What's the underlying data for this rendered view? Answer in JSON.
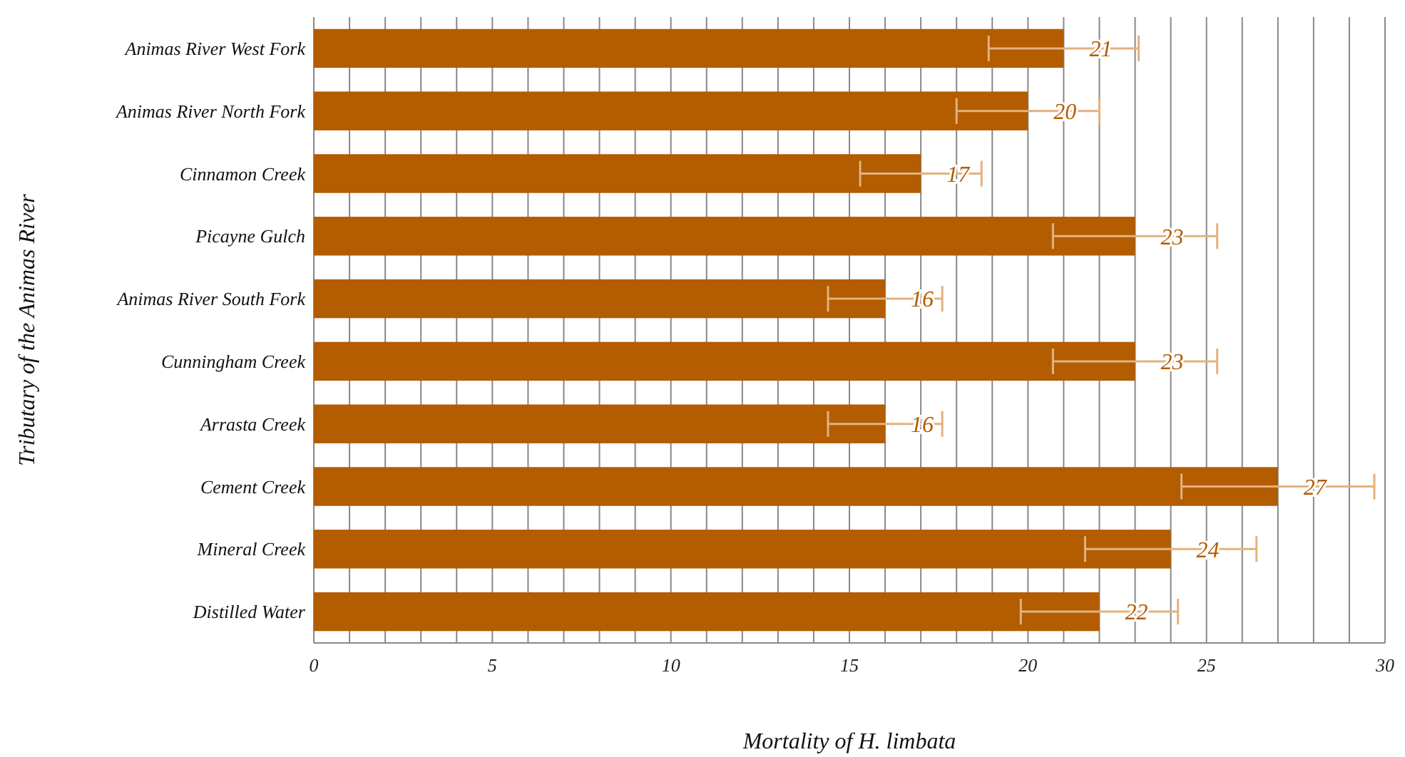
{
  "chart_data": {
    "type": "bar",
    "orientation": "horizontal",
    "xlabel": "Mortality of H. limbata",
    "ylabel": "Tributary of the Animas River",
    "categories": [
      "Animas River West Fork",
      "Animas River North Fork",
      "Cinnamon Creek",
      "Picayne Gulch",
      "Animas River South Fork",
      "Cunningham Creek",
      "Arrasta Creek",
      "Cement Creek",
      "Mineral Creek",
      "Distilled Water"
    ],
    "values": [
      21,
      20,
      17,
      23,
      16,
      23,
      16,
      27,
      24,
      22
    ],
    "errors": [
      2.1,
      2,
      1.7,
      2.3,
      1.6,
      2.3,
      1.6,
      2.7,
      2.4,
      2.2
    ],
    "color": "#b35c00",
    "data_labels": true,
    "grid": "x",
    "xlim": [
      0,
      30
    ],
    "xticks": [
      0,
      {
        "value": 1,
        "label": null
      },
      {
        "value": 2,
        "label": null
      },
      {
        "value": 3,
        "label": null
      },
      {
        "value": 4,
        "label": null
      },
      5,
      {
        "value": 6,
        "label": null
      },
      {
        "value": 7,
        "label": null
      },
      {
        "value": 8,
        "label": null
      },
      {
        "value": 9,
        "label": null
      },
      10,
      {
        "value": 11,
        "label": null
      },
      {
        "value": 12,
        "label": null
      },
      {
        "value": 13,
        "label": null
      },
      {
        "value": 14,
        "label": null
      },
      15,
      {
        "value": 16,
        "label": null
      },
      {
        "value": 17,
        "label": null
      },
      {
        "value": 18,
        "label": null
      },
      {
        "value": 19,
        "label": null
      },
      20,
      {
        "value": 21,
        "label": null
      },
      {
        "value": 22,
        "label": null
      },
      {
        "value": 23,
        "label": null
      },
      {
        "value": 24,
        "label": null
      },
      25,
      {
        "value": 26,
        "label": null
      },
      {
        "value": 27,
        "label": null
      },
      {
        "value": 28,
        "label": null
      },
      {
        "value": 29,
        "label": null
      },
      30
    ]
  }
}
